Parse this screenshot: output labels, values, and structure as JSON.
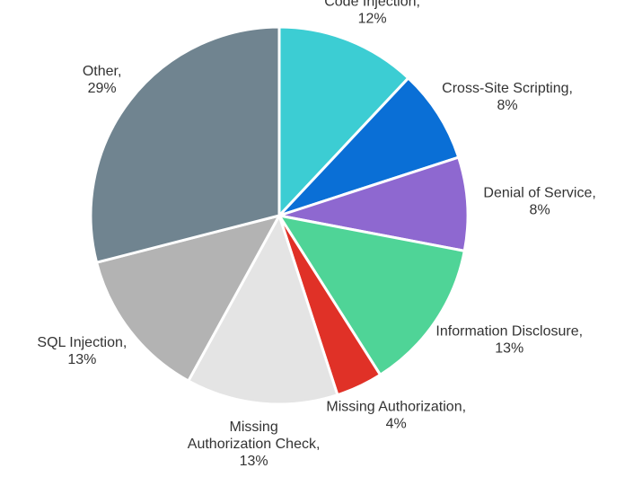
{
  "chart_data": {
    "type": "pie",
    "categories": [
      "Code Injection,",
      "Cross-Site Scripting,",
      "Denial of Service,",
      "Information Disclosure,",
      "Missing Authorization,",
      "Missing Authorization Check,",
      "SQL Injection,",
      "Other,"
    ],
    "values": [
      12,
      8,
      8,
      13,
      4,
      13,
      13,
      29
    ],
    "value_labels": [
      "12%",
      "8%",
      "8%",
      "13%",
      "4%",
      "13%",
      "13%",
      "29%"
    ],
    "colors": [
      "#3ccdd3",
      "#0a6fd6",
      "#8e68d0",
      "#4fd497",
      "#e03127",
      "#e4e4e4",
      "#b3b3b3",
      "#708490"
    ]
  }
}
